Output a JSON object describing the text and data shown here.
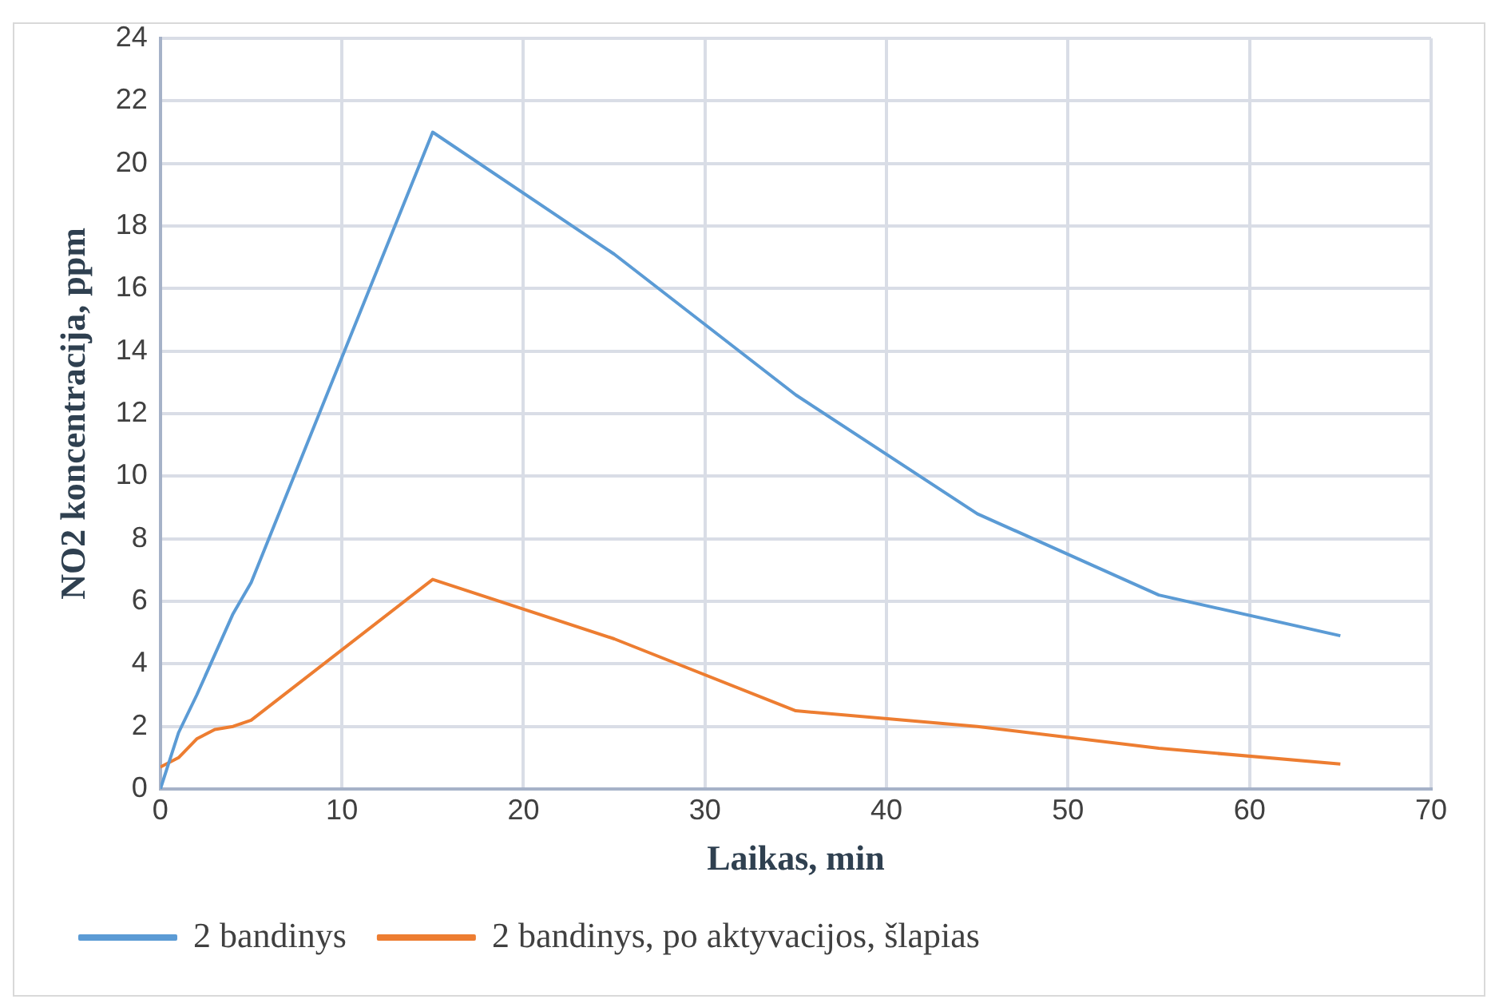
{
  "chart_data": {
    "type": "line",
    "xlabel": "Laikas, min",
    "ylabel": "NO2 koncentracija, ppm",
    "xlim": [
      0,
      70
    ],
    "xticks": [
      0,
      10,
      20,
      30,
      40,
      50,
      60,
      70
    ],
    "ylim": [
      0,
      24
    ],
    "yticks": [
      0,
      2,
      4,
      6,
      8,
      10,
      12,
      14,
      16,
      18,
      20,
      22,
      24
    ],
    "grid": true,
    "legend": "bottom",
    "marker": "none",
    "line_style": "solid",
    "series": [
      {
        "name": "2 bandinys",
        "color": "#5b9bd5",
        "x": [
          0,
          1,
          2,
          3,
          4,
          5,
          15,
          25,
          35,
          45,
          55,
          65
        ],
        "values": [
          0,
          1.8,
          3,
          4.3,
          5.6,
          6.6,
          21,
          17.1,
          12.6,
          8.8,
          6.2,
          4.9
        ]
      },
      {
        "name": "2 bandinys, po aktyvacijos, šlapias",
        "color": "#ed7d31",
        "x": [
          0,
          1,
          2,
          3,
          4,
          5,
          15,
          25,
          35,
          45,
          55,
          65
        ],
        "values": [
          0.7,
          1,
          1.6,
          1.9,
          2,
          2.2,
          6.7,
          4.8,
          2.5,
          2,
          1.3,
          0.8
        ]
      }
    ]
  }
}
